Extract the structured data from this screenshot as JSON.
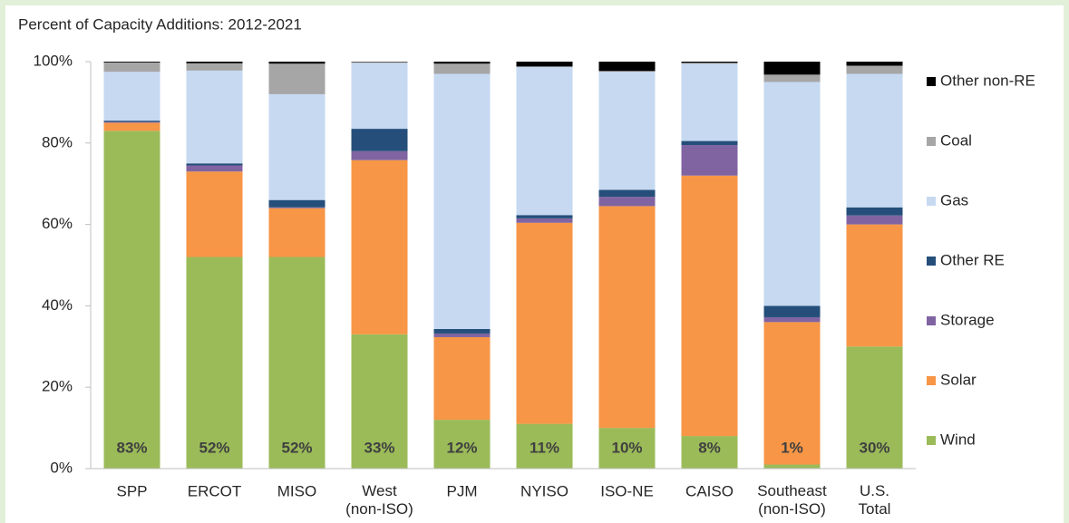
{
  "chart_data": {
    "type": "stacked_bar",
    "title": "Percent of Capacity Additions: 2012-2021",
    "categories": [
      "SPP",
      "ERCOT",
      "MISO",
      "West (non-ISO)",
      "PJM",
      "NYISO",
      "ISO-NE",
      "CAISO",
      "Southeast (non-ISO)",
      "U.S. Total"
    ],
    "series": [
      {
        "name": "Wind",
        "color": "#9bbb59",
        "values": [
          83,
          52,
          52,
          33,
          12,
          11,
          10,
          8,
          1,
          30
        ],
        "value_labels": [
          "83%",
          "52%",
          "52%",
          "33%",
          "12%",
          "11%",
          "10%",
          "8%",
          "1%",
          "30%"
        ]
      },
      {
        "name": "Solar",
        "color": "#f79646",
        "values": [
          2,
          21,
          12,
          42.8,
          20.3,
          49.4,
          54.5,
          64,
          35,
          30
        ]
      },
      {
        "name": "Storage",
        "color": "#8064a2",
        "values": [
          0.2,
          1.5,
          0.2,
          2.2,
          0.9,
          1.1,
          2.3,
          7.5,
          1.2,
          2.2
        ]
      },
      {
        "name": "Other RE",
        "color": "#254f7a",
        "values": [
          0.3,
          0.5,
          1.8,
          5.5,
          1.1,
          0.8,
          1.7,
          1,
          2.8,
          2
        ]
      },
      {
        "name": "Gas",
        "color": "#c6d9f1",
        "values": [
          12,
          22.8,
          26,
          16.2,
          62.7,
          36.4,
          29,
          19,
          55,
          32.8
        ]
      },
      {
        "name": "Coal",
        "color": "#a6a6a6",
        "values": [
          2.3,
          1.8,
          7.5,
          0.2,
          2.5,
          0.1,
          0.2,
          0.2,
          1.8,
          2
        ]
      },
      {
        "name": "Other non-RE",
        "color": "#000000",
        "values": [
          0.2,
          0.4,
          0.5,
          0.1,
          0.5,
          1.2,
          2.3,
          0.3,
          3.2,
          1
        ]
      }
    ],
    "ylim": [
      0,
      100
    ],
    "yticks": [
      {
        "value": 0,
        "label": "0%"
      },
      {
        "value": 20,
        "label": "20%"
      },
      {
        "value": 40,
        "label": "40%"
      },
      {
        "value": 60,
        "label": "60%"
      },
      {
        "value": 80,
        "label": "80%"
      },
      {
        "value": 100,
        "label": "100%"
      }
    ],
    "legend": "right"
  }
}
